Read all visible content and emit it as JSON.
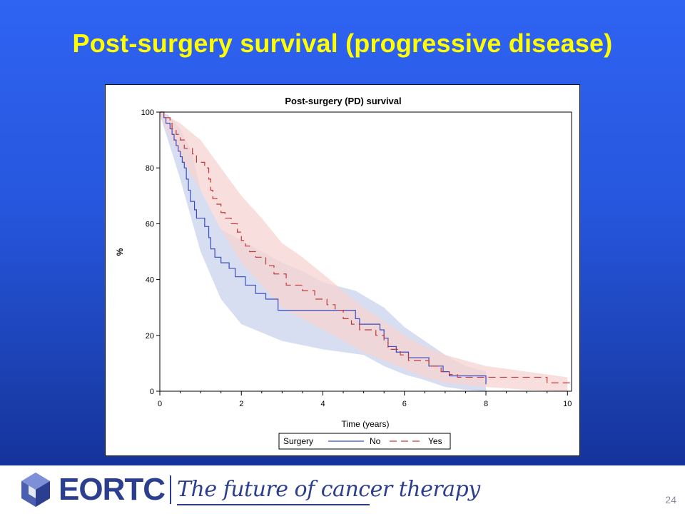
{
  "slide": {
    "title": "Post-surgery survival (progressive disease)",
    "page_number": "24"
  },
  "footer": {
    "logo_text": "EORTC",
    "tagline": "The future of cancer therapy"
  },
  "chart_data": {
    "type": "line",
    "title": "Post-surgery (PD) survival",
    "xlabel": "Time (years)",
    "ylabel": "%",
    "xlim": [
      0,
      10.1
    ],
    "ylim": [
      0,
      100
    ],
    "xticks": [
      0,
      2,
      4,
      6,
      8,
      10
    ],
    "yticks": [
      0,
      20,
      40,
      60,
      80,
      100
    ],
    "legend": {
      "title": "Surgery",
      "placement": "bottom"
    },
    "series": [
      {
        "name": "No",
        "color": "#3b4cc0",
        "dash": "solid",
        "band_color": "#c9d3ee",
        "steps": [
          [
            0,
            100
          ],
          [
            0.1,
            98
          ],
          [
            0.15,
            96
          ],
          [
            0.25,
            94
          ],
          [
            0.3,
            92
          ],
          [
            0.35,
            90
          ],
          [
            0.4,
            88
          ],
          [
            0.45,
            86
          ],
          [
            0.5,
            84
          ],
          [
            0.55,
            82
          ],
          [
            0.6,
            80
          ],
          [
            0.65,
            76
          ],
          [
            0.7,
            72
          ],
          [
            0.75,
            68
          ],
          [
            0.85,
            65
          ],
          [
            0.9,
            62
          ],
          [
            1.1,
            59
          ],
          [
            1.2,
            55
          ],
          [
            1.25,
            51
          ],
          [
            1.35,
            48
          ],
          [
            1.5,
            46
          ],
          [
            1.7,
            44
          ],
          [
            1.85,
            41
          ],
          [
            2.1,
            38
          ],
          [
            2.35,
            35
          ],
          [
            2.6,
            33
          ],
          [
            2.9,
            29
          ],
          [
            4.8,
            26
          ],
          [
            4.9,
            24
          ],
          [
            5.4,
            22
          ],
          [
            5.5,
            19
          ],
          [
            5.6,
            16
          ],
          [
            5.8,
            14
          ],
          [
            6.1,
            12
          ],
          [
            6.6,
            9
          ],
          [
            6.95,
            7
          ],
          [
            7.1,
            5.5
          ],
          [
            8.0,
            2.5
          ]
        ],
        "band_lower": [
          [
            0,
            99
          ],
          [
            0.2,
            90
          ],
          [
            0.5,
            76
          ],
          [
            1,
            50
          ],
          [
            1.5,
            33
          ],
          [
            2,
            24
          ],
          [
            3,
            18
          ],
          [
            4,
            15
          ],
          [
            5,
            13
          ],
          [
            5.5,
            9
          ],
          [
            6,
            6
          ],
          [
            6.5,
            4
          ],
          [
            7,
            1.5
          ],
          [
            7.5,
            0.5
          ],
          [
            8,
            0
          ]
        ],
        "band_upper": [
          [
            0,
            100
          ],
          [
            0.2,
            99
          ],
          [
            0.5,
            94
          ],
          [
            0.8,
            85
          ],
          [
            1,
            72
          ],
          [
            1.5,
            58
          ],
          [
            2,
            54
          ],
          [
            2.5,
            50
          ],
          [
            3,
            46
          ],
          [
            3.5,
            43
          ],
          [
            4,
            39
          ],
          [
            4.8,
            36
          ],
          [
            5.5,
            30
          ],
          [
            6,
            23
          ],
          [
            6.5,
            18
          ],
          [
            7,
            13
          ],
          [
            7.5,
            9
          ],
          [
            8,
            7
          ]
        ]
      },
      {
        "name": "Yes",
        "color": "#c0393b",
        "dash": "10,6",
        "band_color": "#f6d3d0",
        "steps": [
          [
            0,
            100
          ],
          [
            0.1,
            98
          ],
          [
            0.25,
            96
          ],
          [
            0.3,
            94
          ],
          [
            0.4,
            92
          ],
          [
            0.5,
            90
          ],
          [
            0.6,
            87
          ],
          [
            0.8,
            85
          ],
          [
            0.9,
            82
          ],
          [
            1.1,
            80
          ],
          [
            1.2,
            76
          ],
          [
            1.25,
            72
          ],
          [
            1.3,
            69
          ],
          [
            1.4,
            67
          ],
          [
            1.5,
            64
          ],
          [
            1.6,
            62
          ],
          [
            1.75,
            60
          ],
          [
            1.9,
            57
          ],
          [
            2,
            54
          ],
          [
            2.1,
            52
          ],
          [
            2.2,
            50
          ],
          [
            2.35,
            48
          ],
          [
            2.6,
            45
          ],
          [
            2.8,
            42
          ],
          [
            3.1,
            38
          ],
          [
            3.5,
            36
          ],
          [
            3.8,
            33
          ],
          [
            4.1,
            31
          ],
          [
            4.3,
            29
          ],
          [
            4.5,
            26
          ],
          [
            4.7,
            24
          ],
          [
            4.9,
            22
          ],
          [
            5.3,
            20
          ],
          [
            5.5,
            18
          ],
          [
            5.6,
            15
          ],
          [
            5.9,
            13
          ],
          [
            6.1,
            11
          ],
          [
            6.6,
            9
          ],
          [
            6.9,
            7
          ],
          [
            7.1,
            6
          ],
          [
            7.3,
            5
          ],
          [
            9.5,
            3
          ]
        ],
        "band_lower": [
          [
            0,
            99
          ],
          [
            0.5,
            84
          ],
          [
            1,
            72
          ],
          [
            1.5,
            58
          ],
          [
            2,
            46
          ],
          [
            2.5,
            38
          ],
          [
            3,
            30
          ],
          [
            3.5,
            26
          ],
          [
            4,
            22
          ],
          [
            4.5,
            18
          ],
          [
            5,
            14
          ],
          [
            5.5,
            11
          ],
          [
            6,
            8
          ],
          [
            6.5,
            5
          ],
          [
            7,
            3
          ],
          [
            8,
            1.5
          ],
          [
            9,
            0.5
          ],
          [
            10,
            0
          ]
        ],
        "band_upper": [
          [
            0,
            100
          ],
          [
            0.5,
            96
          ],
          [
            1,
            90
          ],
          [
            1.5,
            80
          ],
          [
            2,
            70
          ],
          [
            2.5,
            62
          ],
          [
            3,
            53
          ],
          [
            3.5,
            48
          ],
          [
            4,
            42
          ],
          [
            4.5,
            36
          ],
          [
            5,
            30
          ],
          [
            5.5,
            25
          ],
          [
            6,
            20
          ],
          [
            6.5,
            16
          ],
          [
            7,
            13
          ],
          [
            7.5,
            11
          ],
          [
            8,
            9
          ],
          [
            9,
            7
          ],
          [
            10,
            5
          ]
        ]
      }
    ]
  }
}
